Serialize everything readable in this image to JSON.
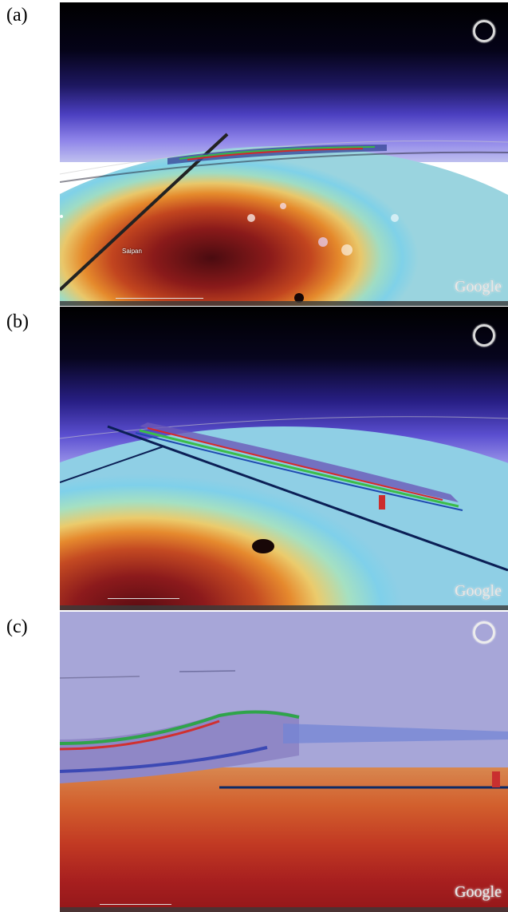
{
  "panels": [
    {
      "label": "(a)",
      "logo": "Google",
      "places": [
        "Saipan"
      ]
    },
    {
      "label": "(b)",
      "logo": "Google"
    },
    {
      "label": "(c)",
      "logo": "Google"
    }
  ],
  "icons": {
    "compass": "compass-ring-icon"
  },
  "colors": {
    "sky_top": "#000000",
    "sky_glow": "#5b4fd0",
    "radar_core": "#8a1a1a",
    "radar_edge": "#e58a2c",
    "ocean": "#7fd1e8"
  }
}
